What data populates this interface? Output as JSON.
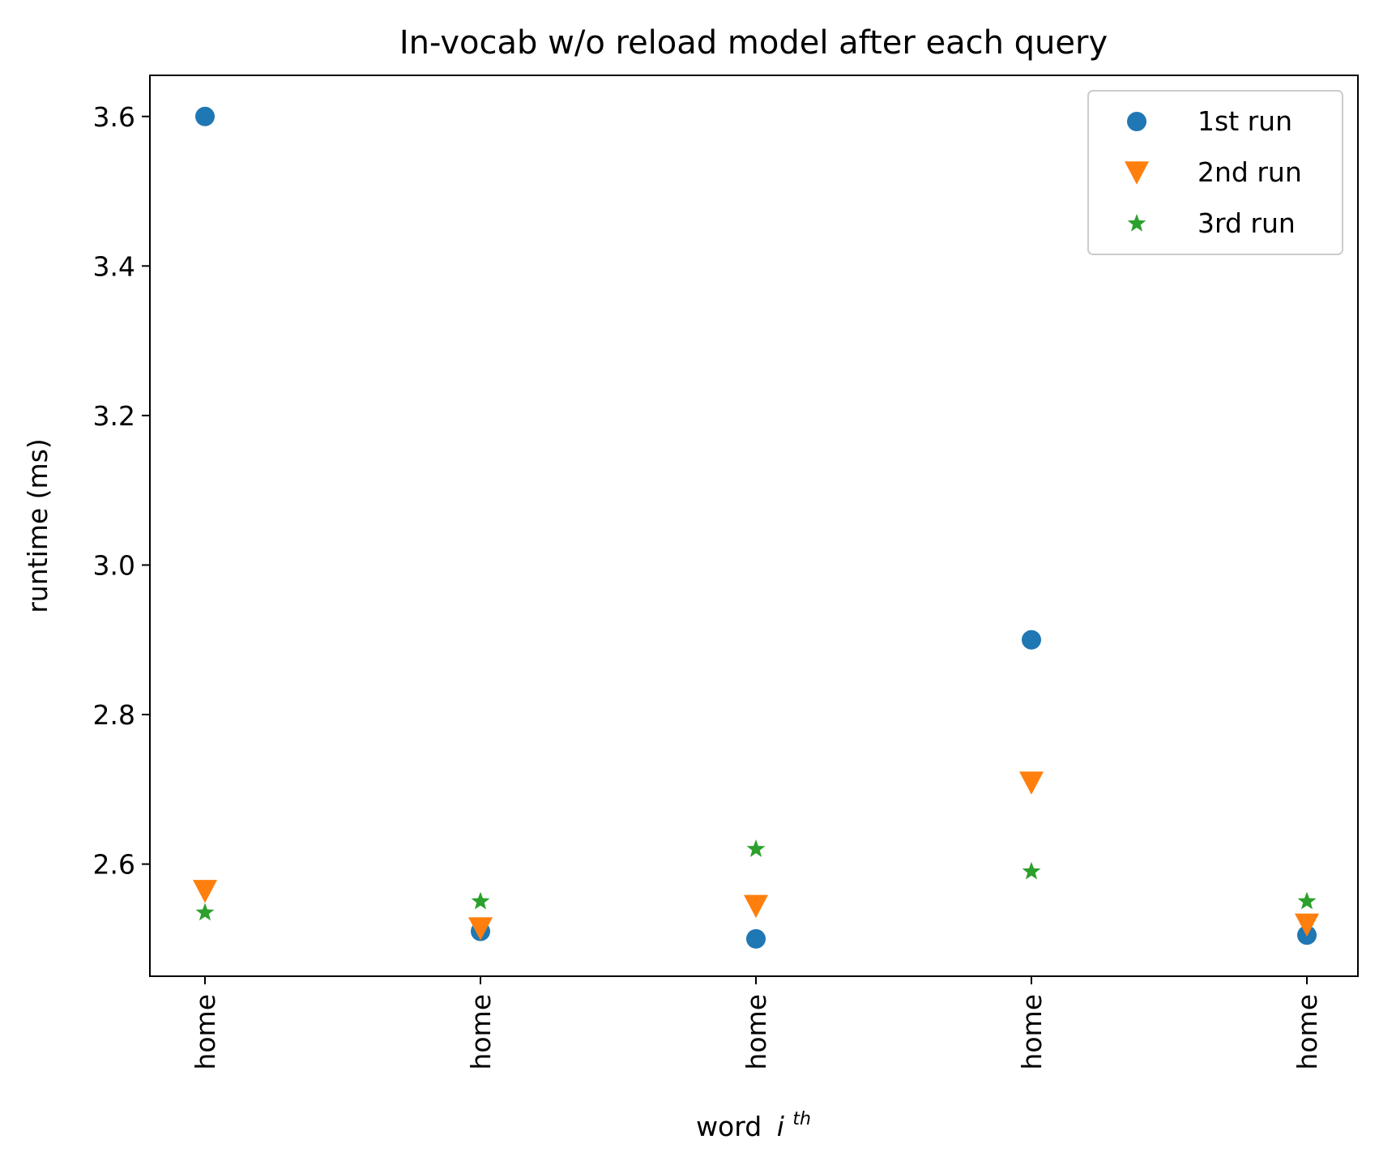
{
  "chart_data": {
    "type": "scatter",
    "title": "In-vocab w/o reload model after each query",
    "xlabel": "word",
    "xlabel_superscript": "th",
    "xlabel_italic": "i",
    "ylabel": "runtime (ms)",
    "categories": [
      "home",
      "home",
      "home",
      "home",
      "home"
    ],
    "ylim": [
      2.45,
      3.655
    ],
    "yticks": [
      2.6,
      2.8,
      3.0,
      3.2,
      3.4,
      3.6
    ],
    "ytick_labels": [
      "2.6",
      "2.8",
      "3.0",
      "3.2",
      "3.4",
      "3.6"
    ],
    "grid": false,
    "legend_position": "top-right",
    "series": [
      {
        "name": "1st run",
        "marker": "circle",
        "color": "#1f77b4",
        "values": [
          3.6,
          2.51,
          2.5,
          2.9,
          2.505
        ]
      },
      {
        "name": "2nd run",
        "marker": "triangle-down",
        "color": "#ff7f0e",
        "values": [
          2.565,
          2.515,
          2.545,
          2.71,
          2.52
        ]
      },
      {
        "name": "3rd run",
        "marker": "star",
        "color": "#2ca02c",
        "values": [
          2.535,
          2.55,
          2.62,
          2.59,
          2.55
        ]
      }
    ]
  }
}
